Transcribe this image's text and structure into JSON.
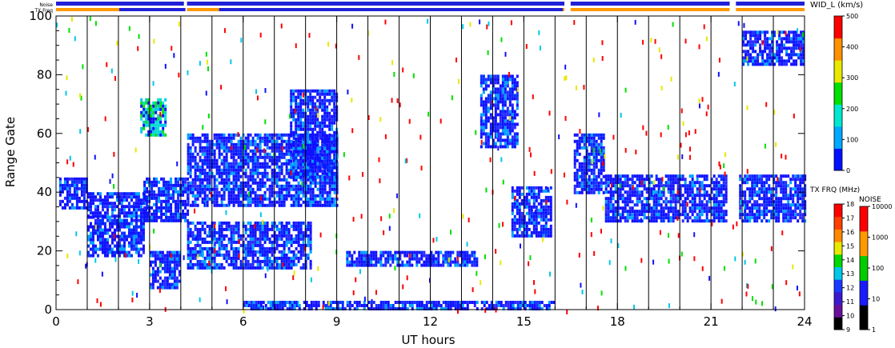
{
  "chart_data": {
    "type": "heatmap",
    "xlabel": "UT hours",
    "ylabel": "Range Gate",
    "xlim": [
      0,
      24
    ],
    "ylim": [
      0,
      100
    ],
    "xticks": [
      "0",
      "3",
      "6",
      "9",
      "12",
      "15",
      "18",
      "21",
      "24"
    ],
    "yticks": [
      "0",
      "20",
      "40",
      "60",
      "80",
      "100"
    ],
    "top_bars": {
      "noise_label": "Noise",
      "txfreq_label": "TX Freq",
      "segments": [
        [
          0,
          4.1
        ],
        [
          4.2,
          16.3
        ],
        [
          16.5,
          21.6
        ],
        [
          21.8,
          24
        ]
      ]
    },
    "scan_lines_ut": [
      1.0,
      2.0,
      3.0,
      4.0,
      5.0,
      6.0,
      7.0,
      8.0,
      9.0,
      10.0,
      11.0,
      12.0,
      13.0,
      14.0,
      15.0,
      16.0,
      17.0,
      18.0,
      19.0,
      20.0,
      21.0,
      22.0,
      23.0
    ],
    "regions": [
      {
        "x": [
          0.1,
          1.0
        ],
        "y": [
          35,
          45
        ],
        "level": "low"
      },
      {
        "x": [
          1.0,
          2.8
        ],
        "y": [
          18,
          32
        ],
        "level": "low"
      },
      {
        "x": [
          1.0,
          3.0
        ],
        "y": [
          32,
          40
        ],
        "level": "low"
      },
      {
        "x": [
          2.8,
          4.2
        ],
        "y": [
          30,
          45
        ],
        "level": "low"
      },
      {
        "x": [
          2.7,
          3.5
        ],
        "y": [
          60,
          72
        ],
        "level": "mid"
      },
      {
        "x": [
          3.0,
          4.0
        ],
        "y": [
          8,
          20
        ],
        "level": "low"
      },
      {
        "x": [
          4.2,
          8.2
        ],
        "y": [
          14,
          30
        ],
        "level": "low"
      },
      {
        "x": [
          4.2,
          9.0
        ],
        "y": [
          35,
          60
        ],
        "level": "low"
      },
      {
        "x": [
          7.5,
          9.0
        ],
        "y": [
          45,
          75
        ],
        "level": "low"
      },
      {
        "x": [
          9.3,
          13.5
        ],
        "y": [
          15,
          20
        ],
        "level": "low"
      },
      {
        "x": [
          13.6,
          14.8
        ],
        "y": [
          55,
          80
        ],
        "level": "low"
      },
      {
        "x": [
          14.6,
          15.9
        ],
        "y": [
          25,
          42
        ],
        "level": "low"
      },
      {
        "x": [
          6.0,
          16.0
        ],
        "y": [
          0,
          3
        ],
        "level": "low"
      },
      {
        "x": [
          16.6,
          17.6
        ],
        "y": [
          40,
          60
        ],
        "level": "low"
      },
      {
        "x": [
          17.6,
          21.5
        ],
        "y": [
          30,
          46
        ],
        "level": "low"
      },
      {
        "x": [
          21.9,
          24.0
        ],
        "y": [
          30,
          46
        ],
        "level": "low"
      },
      {
        "x": [
          22.0,
          24.0
        ],
        "y": [
          84,
          95
        ],
        "level": "low"
      }
    ],
    "colorbars": [
      {
        "title": "WID_L (km/s)",
        "ticks": [
          "0",
          "100",
          "200",
          "300",
          "400",
          "500"
        ],
        "colors": [
          "#0010ff",
          "#00a8ff",
          "#00e8d0",
          "#00e000",
          "#e8e800",
          "#ff9000",
          "#ff0000"
        ]
      },
      {
        "title": "TX FRQ (MHz)",
        "ticks": [
          "9",
          "10",
          "11",
          "12",
          "13",
          "14",
          "15",
          "16",
          "17",
          "18"
        ],
        "colors": [
          "#000000",
          "#6a0f9c",
          "#3b19cf",
          "#1a39ff",
          "#00c8e8",
          "#00d800",
          "#e8e800",
          "#ff8800",
          "#ff4000",
          "#ff0000"
        ]
      },
      {
        "title": "NOISE",
        "ticks": [
          "1",
          "10",
          "100",
          "1000",
          "10000"
        ],
        "colors": [
          "#000000",
          "#1a1aff",
          "#00cc00",
          "#ff9900",
          "#ff0000"
        ]
      }
    ]
  }
}
